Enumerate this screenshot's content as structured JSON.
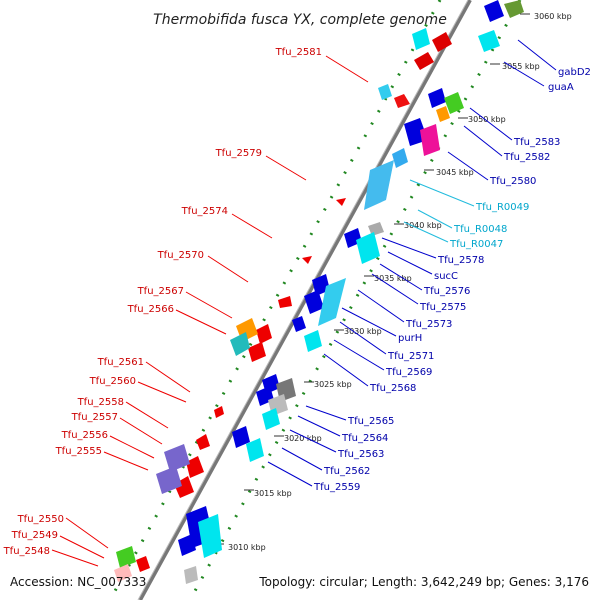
{
  "title": "Thermobifida fusca YX, complete genome",
  "footer": {
    "accession": "Accession: NC_007333",
    "topology": "Topology: circular; Length: 3,642,249 bp; Genes: 3,176"
  },
  "ticks": [
    "3060 kbp",
    "3055 kbp",
    "3050 kbp",
    "3045 kbp",
    "3040 kbp",
    "3035 kbp",
    "3030 kbp",
    "3025 kbp",
    "3020 kbp",
    "3015 kbp",
    "3010 kbp"
  ],
  "left_labels": [
    "Tfu_2581",
    "Tfu_2579",
    "Tfu_2574",
    "Tfu_2570",
    "Tfu_2567",
    "Tfu_2566",
    "Tfu_2561",
    "Tfu_2560",
    "Tfu_2558",
    "Tfu_2557",
    "Tfu_2556",
    "Tfu_2555",
    "Tfu_2550",
    "Tfu_2549",
    "Tfu_2548"
  ],
  "right_labels": [
    "gabD2",
    "guaA",
    "Tfu_2583",
    "Tfu_2582",
    "Tfu_2580",
    "Tfu_R0049",
    "Tfu_R0048",
    "Tfu_R0047",
    "Tfu_2578",
    "sucC",
    "Tfu_2576",
    "Tfu_2575",
    "Tfu_2573",
    "purH",
    "Tfu_2571",
    "Tfu_2569",
    "Tfu_2568",
    "Tfu_2565",
    "Tfu_2564",
    "Tfu_2563",
    "Tfu_2562",
    "Tfu_2559"
  ],
  "colors": {
    "backbone": "#888888",
    "forward_gene": "#dd0000",
    "reverse_gene": "#0000dd",
    "rna": "#33ccee",
    "cyan": "#00e5ee",
    "green": "#44cc22",
    "orange": "#ff9900",
    "magenta": "#ee1199",
    "purple": "#7766cc",
    "gray": "#999999",
    "olive": "#669933"
  }
}
